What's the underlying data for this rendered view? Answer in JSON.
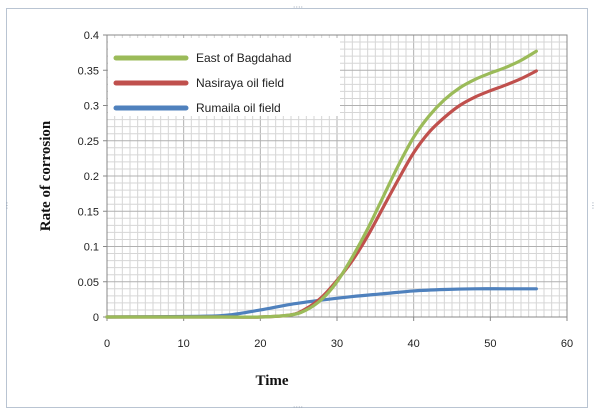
{
  "chart_data": {
    "type": "line",
    "title": "",
    "xlabel": "Time",
    "ylabel": "Rate of corrosion",
    "xlim": [
      0,
      60
    ],
    "ylim": [
      0,
      0.4
    ],
    "xticks": [
      "0",
      "10",
      "20",
      "30",
      "40",
      "50",
      "60"
    ],
    "yticks": [
      "0",
      "0.05",
      "0.1",
      "0.15",
      "0.2",
      "0.25",
      "0.3",
      "0.35",
      "0.4"
    ],
    "grid": true,
    "legend_position": "top-left",
    "series": [
      {
        "name": "East of Bagdahad",
        "color": "#9bbb59",
        "x": [
          0,
          15,
          20,
          24,
          26,
          28,
          30,
          32,
          34,
          36,
          38,
          40,
          42,
          44,
          46,
          48,
          50,
          52,
          54,
          56
        ],
        "y": [
          0,
          0,
          0,
          0.003,
          0.01,
          0.025,
          0.05,
          0.085,
          0.125,
          0.17,
          0.215,
          0.255,
          0.285,
          0.308,
          0.325,
          0.337,
          0.346,
          0.354,
          0.364,
          0.377
        ]
      },
      {
        "name": "Nasiraya oil field",
        "color": "#c0504d",
        "x": [
          0,
          15,
          20,
          24,
          26,
          28,
          30,
          32,
          34,
          36,
          38,
          40,
          42,
          44,
          46,
          48,
          50,
          52,
          54,
          56
        ],
        "y": [
          0,
          0,
          0,
          0.003,
          0.012,
          0.028,
          0.052,
          0.08,
          0.115,
          0.155,
          0.195,
          0.233,
          0.262,
          0.283,
          0.3,
          0.312,
          0.321,
          0.329,
          0.338,
          0.349
        ]
      },
      {
        "name": "Rumaila oil field",
        "color": "#4f81bd",
        "x": [
          0,
          12,
          16,
          20,
          24,
          28,
          32,
          36,
          40,
          44,
          48,
          52,
          56
        ],
        "y": [
          0,
          0.001,
          0.003,
          0.01,
          0.018,
          0.024,
          0.029,
          0.033,
          0.037,
          0.039,
          0.04,
          0.04,
          0.04
        ]
      }
    ]
  }
}
